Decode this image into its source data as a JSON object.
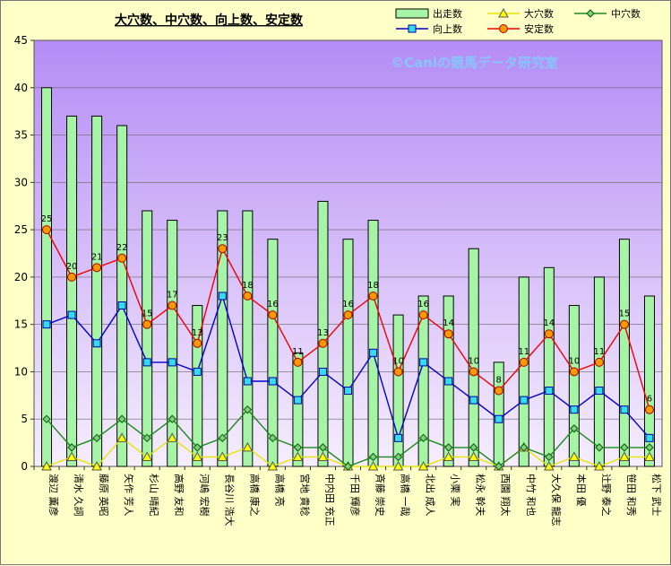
{
  "chart_data": {
    "type": "bar+line",
    "title": "大穴数、中穴数、向上数、安定数",
    "watermark": "©Caniの競馬データ研究室",
    "ylim": [
      0,
      45
    ],
    "yticks": [
      0,
      5,
      10,
      15,
      20,
      25,
      30,
      35,
      40,
      45
    ],
    "grid": true,
    "legend_position": "top-right",
    "categories": [
      "渡辺 薫彦",
      "清水 久詞",
      "藤原 英昭",
      "矢作 芳人",
      "杉山 晴紀",
      "高野 友和",
      "河嶋 宏樹",
      "長谷川 浩大",
      "高橋 康之",
      "高橋 亮",
      "宮地 貴稔",
      "中内田 充正",
      "千田 輝彦",
      "斉藤 崇史",
      "高橋 一哉",
      "北出 成人",
      "小栗 実",
      "松永 幹夫",
      "西園 翔太",
      "中竹 和也",
      "大久保 龍志",
      "本田 優",
      "辻野 泰之",
      "笹田 和秀",
      "松下 武士"
    ],
    "series": [
      {
        "name": "出走数",
        "type": "bar",
        "color": "#a6f5a6",
        "values": [
          40,
          37,
          37,
          36,
          27,
          26,
          17,
          27,
          27,
          24,
          12,
          28,
          24,
          26,
          16,
          18,
          18,
          23,
          11,
          20,
          21,
          17,
          20,
          24,
          18
        ]
      },
      {
        "name": "大穴数",
        "type": "line",
        "color": "#ffff00",
        "values": [
          0,
          1,
          0,
          3,
          1,
          3,
          1,
          1,
          2,
          0,
          1,
          1,
          0,
          0,
          0,
          0,
          1,
          1,
          0,
          2,
          0,
          1,
          0,
          1,
          1
        ]
      },
      {
        "name": "中穴数",
        "type": "line",
        "color": "#1a8a1a",
        "values": [
          5,
          2,
          3,
          5,
          3,
          5,
          2,
          3,
          6,
          3,
          2,
          2,
          0,
          1,
          1,
          3,
          2,
          2,
          0,
          2,
          1,
          4,
          2,
          2,
          2
        ]
      },
      {
        "name": "向上数",
        "type": "line",
        "color": "#0000cc",
        "values": [
          15,
          16,
          13,
          17,
          11,
          11,
          10,
          18,
          9,
          9,
          7,
          10,
          8,
          12,
          3,
          11,
          9,
          7,
          5,
          7,
          8,
          6,
          8,
          6,
          3
        ]
      },
      {
        "name": "安定数",
        "type": "line",
        "color": "#ee0000",
        "values": [
          25,
          20,
          21,
          22,
          15,
          17,
          13,
          23,
          18,
          16,
          11,
          13,
          16,
          18,
          10,
          16,
          14,
          10,
          8,
          11,
          14,
          10,
          11,
          15,
          6
        ]
      }
    ],
    "data_labels_series": "安定数"
  }
}
